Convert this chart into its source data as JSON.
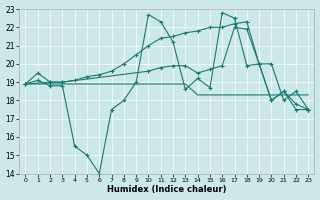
{
  "title": "",
  "xlabel": "Humidex (Indice chaleur)",
  "background_color": "#cce8e8",
  "line_color": "#1a7a6e",
  "grid_color": "#ffffff",
  "xlim": [
    -0.5,
    23.5
  ],
  "ylim": [
    14,
    23
  ],
  "yticks": [
    14,
    15,
    16,
    17,
    18,
    19,
    20,
    21,
    22,
    23
  ],
  "xticks": [
    0,
    1,
    2,
    3,
    4,
    5,
    6,
    7,
    8,
    9,
    10,
    11,
    12,
    13,
    14,
    15,
    16,
    17,
    18,
    19,
    20,
    21,
    22,
    23
  ],
  "line1_x": [
    0,
    1,
    2,
    3,
    4,
    5,
    6,
    7,
    8,
    9,
    10,
    11,
    12,
    13,
    14,
    15,
    16,
    17,
    18,
    19,
    20,
    21,
    22,
    23
  ],
  "line1_y": [
    18.9,
    18.9,
    18.9,
    18.9,
    18.9,
    18.9,
    18.9,
    18.9,
    18.9,
    18.9,
    18.9,
    18.9,
    18.9,
    18.9,
    18.3,
    18.3,
    18.3,
    18.3,
    18.3,
    18.3,
    18.3,
    18.3,
    18.3,
    18.3
  ],
  "line2_x": [
    0,
    1,
    2,
    3,
    4,
    5,
    6,
    7,
    8,
    9,
    10,
    11,
    12,
    13,
    14,
    15,
    16,
    17,
    18,
    19,
    20,
    21,
    22,
    23
  ],
  "line2_y": [
    18.9,
    19.1,
    18.8,
    18.8,
    15.5,
    15.0,
    14.0,
    17.5,
    18.0,
    19.0,
    22.7,
    22.3,
    21.2,
    18.6,
    19.2,
    18.7,
    22.8,
    22.5,
    19.9,
    20.0,
    18.0,
    18.5,
    17.8,
    17.5
  ],
  "line3_x": [
    0,
    1,
    2,
    3,
    4,
    5,
    6,
    7,
    8,
    9,
    10,
    11,
    12,
    13,
    14,
    15,
    16,
    17,
    18,
    19,
    20,
    21,
    22,
    23
  ],
  "line3_y": [
    18.9,
    19.5,
    19.0,
    19.0,
    19.1,
    19.3,
    19.4,
    19.6,
    20.0,
    20.5,
    21.0,
    21.4,
    21.5,
    21.7,
    21.8,
    22.0,
    22.0,
    22.2,
    22.3,
    20.0,
    18.0,
    18.5,
    17.5,
    17.5
  ],
  "line4_x": [
    0,
    2,
    3,
    10,
    11,
    12,
    13,
    14,
    15,
    16,
    17,
    18,
    19,
    20,
    21,
    22,
    23
  ],
  "line4_y": [
    18.9,
    19.0,
    19.0,
    19.6,
    19.8,
    19.9,
    19.9,
    19.5,
    19.7,
    19.9,
    22.0,
    21.9,
    20.0,
    20.0,
    18.0,
    18.5,
    17.5
  ]
}
